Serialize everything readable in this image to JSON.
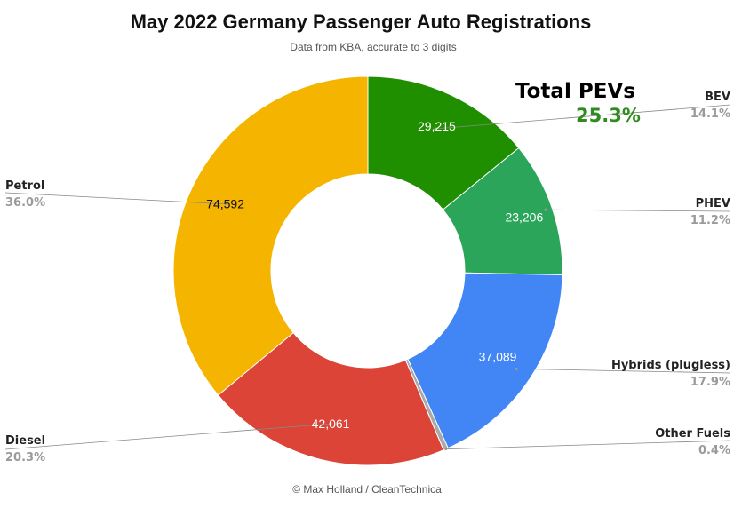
{
  "chart_data": {
    "type": "pie",
    "donut": true,
    "title": "May 2022 Germany Passenger Auto Registrations",
    "subtitle": "Data from KBA, accurate to 3 digits",
    "footer": "© Max Holland / CleanTechnica",
    "callout": {
      "title": "Total PEVs",
      "value": "25.3%"
    },
    "slices": [
      {
        "name": "BEV",
        "value": 29215,
        "value_label": "29,215",
        "percent": "14.1%",
        "color": "#1f8f00",
        "label_color": "#ffffff"
      },
      {
        "name": "PHEV",
        "value": 23206,
        "value_label": "23,206",
        "percent": "11.2%",
        "color": "#2aa55a",
        "label_color": "#ffffff"
      },
      {
        "name": "Hybrids (plugless)",
        "value": 37089,
        "value_label": "37,089",
        "percent": "17.9%",
        "color": "#4285f4",
        "label_color": "#ffffff"
      },
      {
        "name": "Other Fuels",
        "value": 829,
        "value_label": "",
        "percent": "0.4%",
        "color": "#a9a9a9",
        "label_color": "#ffffff"
      },
      {
        "name": "Diesel",
        "value": 42061,
        "value_label": "42,061",
        "percent": "20.3%",
        "color": "#db4437",
        "label_color": "#ffffff"
      },
      {
        "name": "Petrol",
        "value": 74592,
        "value_label": "74,592",
        "percent": "36.0%",
        "color": "#f4b400",
        "label_color": "#111111"
      }
    ]
  }
}
